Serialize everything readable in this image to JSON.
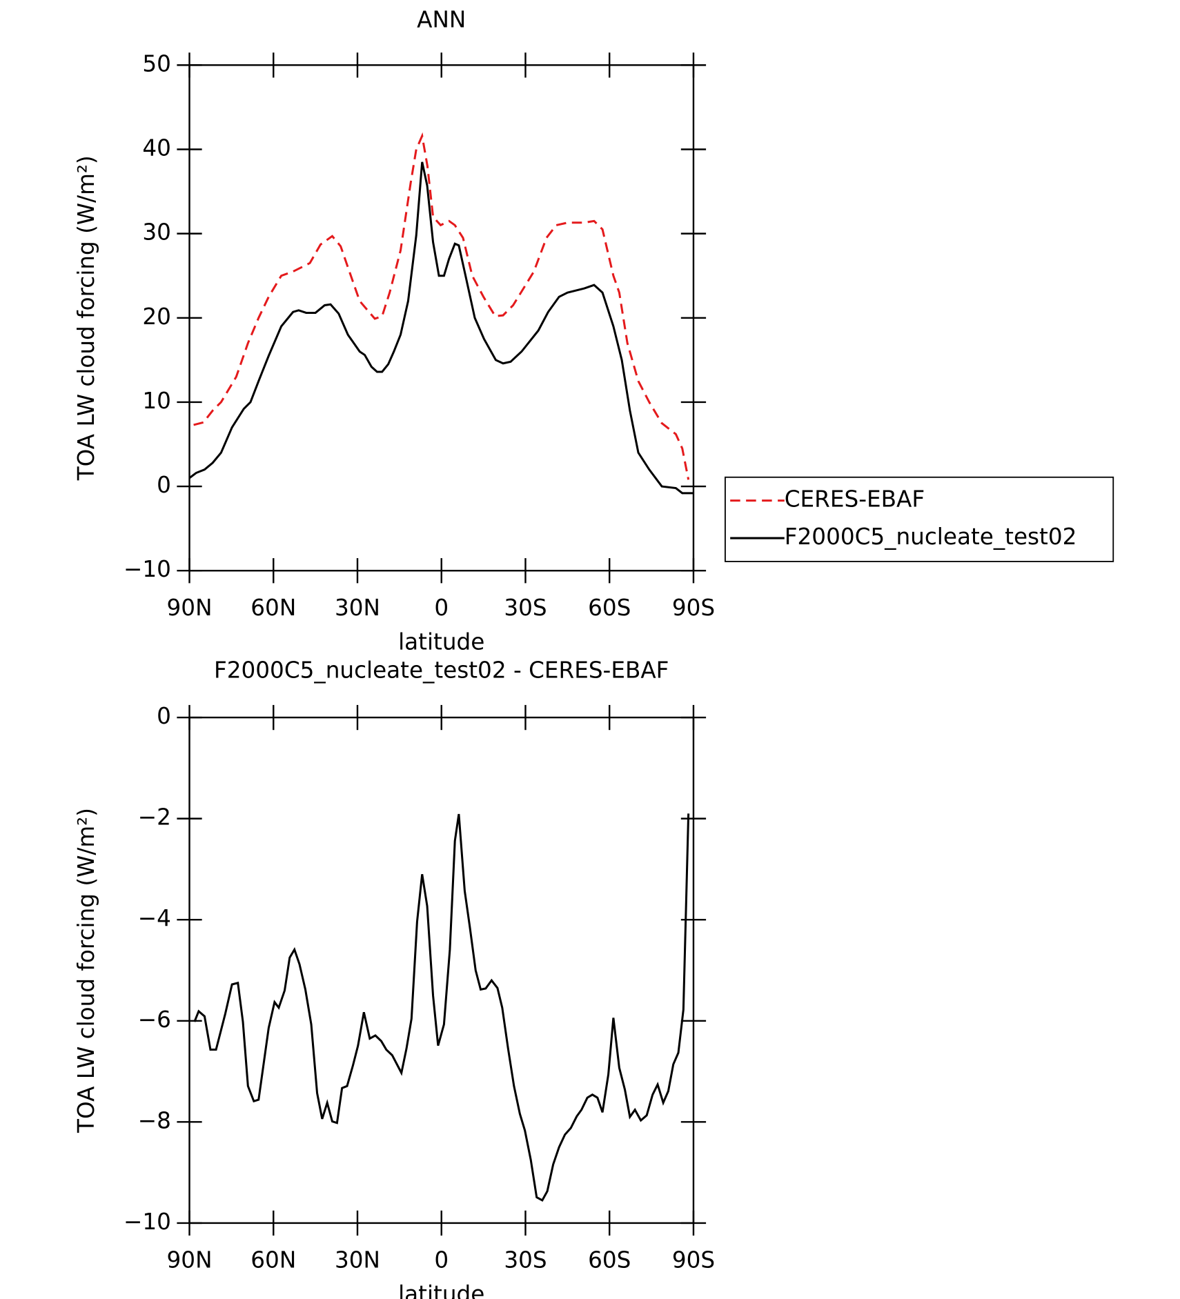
{
  "chart_data": [
    {
      "type": "line",
      "title": "ANN",
      "x_label": "latitude",
      "y_label": "TOA LW cloud forcing (W/m²)",
      "xlim": [
        90,
        -90
      ],
      "xticks": [
        {
          "value": 90,
          "label": "90N"
        },
        {
          "value": 60,
          "label": "60N"
        },
        {
          "value": 30,
          "label": "30N"
        },
        0,
        {
          "value": -30,
          "label": "30S"
        },
        {
          "value": -60,
          "label": "60S"
        },
        {
          "value": -90,
          "label": "90S"
        }
      ],
      "ylim": [
        -10,
        50
      ],
      "yticks": [
        {
          "value": -10,
          "label": "−10"
        },
        0,
        10,
        20,
        30,
        40,
        50
      ],
      "legend": "outside-right",
      "series": [
        {
          "name": "CERES-EBAF",
          "color": "#e41a1c",
          "dashed": true,
          "x": [
            88.5,
            85,
            81.7,
            78.7,
            73.3,
            69.1,
            65.3,
            61.7,
            57.2,
            53,
            47,
            43.2,
            39,
            36,
            33.4,
            29.2,
            23.8,
            21.2,
            18.5,
            14.6,
            11,
            9,
            6.9,
            5,
            3,
            0.3,
            -2.7,
            -4.8,
            -7.7,
            -11,
            -15,
            -19.2,
            -22,
            -25.6,
            -33,
            -37.5,
            -41,
            -45,
            -51,
            -54.5,
            -57.5,
            -61.4,
            -63.5,
            -66.4,
            -70.3,
            -74.2,
            -78.7,
            -83.7,
            -86,
            -88.2
          ],
          "values": [
            7.3,
            7.6,
            9,
            10,
            13,
            17,
            20,
            22.5,
            25,
            25.5,
            26.5,
            28.7,
            29.7,
            28.5,
            26,
            22,
            19.9,
            20.2,
            23,
            28,
            36,
            40,
            41.6,
            38,
            32,
            31,
            31.5,
            31,
            29.5,
            25,
            22.5,
            20.2,
            20.3,
            21.5,
            25.5,
            29.5,
            31,
            31.3,
            31.3,
            31.5,
            30.5,
            25,
            23,
            17,
            12.5,
            10,
            7.5,
            6.2,
            4.5,
            0.8
          ]
        },
        {
          "name": "F2000C5_nucleate_test02",
          "color": "#000000",
          "dashed": false,
          "x": [
            90,
            87.6,
            84.6,
            81.7,
            78.7,
            74.8,
            70.6,
            68.2,
            65.3,
            61.7,
            57.2,
            53,
            51,
            48.3,
            45,
            41.7,
            39.6,
            36.7,
            33.4,
            29.2,
            27.4,
            25,
            23,
            21.2,
            19,
            17,
            14.6,
            11.9,
            9,
            6.9,
            5.1,
            3,
            0.9,
            -0.9,
            -2.7,
            -4.8,
            -6.2,
            -8.6,
            -11.9,
            -15.2,
            -19.4,
            -22,
            -24.7,
            -28.6,
            -34.6,
            -38.1,
            -42,
            -45,
            -51,
            -54.5,
            -57.5,
            -61.4,
            -64.4,
            -67.3,
            -70.3,
            -74.2,
            -78.7,
            -83.7,
            -86,
            -90
          ],
          "values": [
            1,
            1.6,
            2,
            2.8,
            4,
            7,
            9.2,
            10,
            12.5,
            15.5,
            19,
            20.7,
            20.9,
            20.6,
            20.6,
            21.5,
            21.6,
            20.5,
            18,
            16,
            15.6,
            14.2,
            13.6,
            13.6,
            14.5,
            16,
            18,
            22,
            29.8,
            38.5,
            35.7,
            29,
            25,
            25,
            27,
            28.8,
            28.6,
            25,
            20,
            17.5,
            15,
            14.6,
            14.8,
            16,
            18.5,
            20.7,
            22.5,
            23,
            23.5,
            23.9,
            23,
            19,
            15,
            9,
            4,
            2,
            0,
            -0.2,
            -0.8,
            -0.8
          ]
        }
      ]
    },
    {
      "type": "line",
      "title": "F2000C5_nucleate_test02 - CERES-EBAF",
      "x_label": "latitude",
      "y_label": "TOA LW cloud forcing (W/m²)",
      "xlim": [
        90,
        -90
      ],
      "xticks": [
        {
          "value": 90,
          "label": "90N"
        },
        {
          "value": 60,
          "label": "60N"
        },
        {
          "value": 30,
          "label": "30N"
        },
        0,
        {
          "value": -30,
          "label": "30S"
        },
        {
          "value": -60,
          "label": "60S"
        },
        {
          "value": -90,
          "label": "90S"
        }
      ],
      "ylim": [
        -10,
        0
      ],
      "yticks": [
        {
          "value": -10,
          "label": "−10"
        },
        {
          "value": -8,
          "label": "−8"
        },
        {
          "value": -6,
          "label": "−6"
        },
        {
          "value": -4,
          "label": "−4"
        },
        {
          "value": -2,
          "label": "−2"
        },
        0
      ],
      "series": [
        {
          "color": "#000000",
          "dashed": false,
          "x": [
            88.2,
            86.7,
            84.6,
            82.5,
            80.5,
            77.2,
            74.8,
            72.7,
            70.9,
            69.1,
            67,
            65.3,
            61.7,
            59.6,
            58.1,
            56,
            54.2,
            52.5,
            50.7,
            48.6,
            46.5,
            44.4,
            42.6,
            40.8,
            39,
            37.3,
            35.5,
            33.7,
            31.6,
            29.8,
            27.7,
            25.6,
            23.6,
            21.5,
            19.7,
            17.6,
            14.3,
            12.5,
            10.7,
            8.7,
            6.9,
            5.1,
            3,
            1.2,
            -0.9,
            -3,
            -4.8,
            -6.2,
            -8.3,
            -10.1,
            -12.2,
            -14,
            -15.8,
            -17.9,
            -20,
            -21.7,
            -23.8,
            -25.9,
            -28,
            -29.8,
            -31.9,
            -34,
            -36,
            -37.8,
            -39.9,
            -42,
            -44.1,
            -46.2,
            -48.3,
            -50,
            -52.1,
            -53.9,
            -55.7,
            -57.5,
            -59.6,
            -61.4,
            -63.5,
            -65.5,
            -67.3,
            -69.1,
            -71.2,
            -73.3,
            -75.4,
            -77.2,
            -79.2,
            -81,
            -82.8,
            -84.6,
            -86.4,
            -88.2
          ],
          "values": [
            -6.02,
            -5.81,
            -5.91,
            -6.57,
            -6.57,
            -5.86,
            -5.28,
            -5.25,
            -6.02,
            -7.29,
            -7.59,
            -7.56,
            -6.14,
            -5.63,
            -5.74,
            -5.4,
            -4.75,
            -4.59,
            -4.88,
            -5.38,
            -6.07,
            -7.43,
            -7.94,
            -7.62,
            -7.99,
            -8.02,
            -7.33,
            -7.29,
            -6.88,
            -6.49,
            -5.83,
            -6.35,
            -6.29,
            -6.4,
            -6.57,
            -6.68,
            -7.03,
            -6.55,
            -5.96,
            -4.04,
            -3.1,
            -3.73,
            -5.5,
            -6.49,
            -6.07,
            -4.59,
            -2.44,
            -1.91,
            -3.43,
            -4.13,
            -5,
            -5.38,
            -5.36,
            -5.2,
            -5.35,
            -5.74,
            -6.55,
            -7.29,
            -7.84,
            -8.17,
            -8.75,
            -9.49,
            -9.55,
            -9.37,
            -8.84,
            -8.5,
            -8.25,
            -8.12,
            -7.89,
            -7.76,
            -7.52,
            -7.46,
            -7.52,
            -7.81,
            -7.06,
            -5.94,
            -6.93,
            -7.36,
            -7.9,
            -7.76,
            -7.97,
            -7.87,
            -7.46,
            -7.26,
            -7.62,
            -7.39,
            -6.86,
            -6.63,
            -5.78,
            -1.9
          ]
        }
      ]
    }
  ]
}
